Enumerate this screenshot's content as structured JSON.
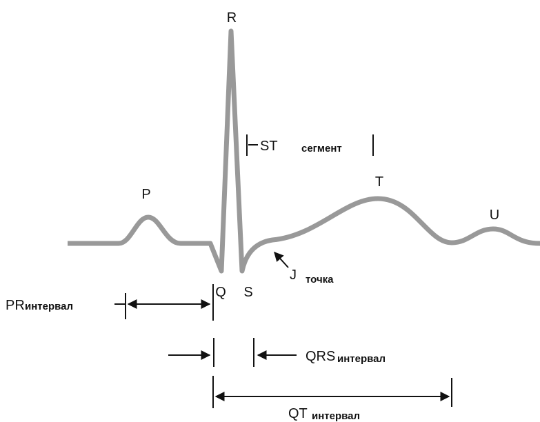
{
  "waves": {
    "P": "P",
    "Q": "Q",
    "R": "R",
    "S": "S",
    "T": "T",
    "U": "U"
  },
  "j_point": {
    "label": "J",
    "text": "точка"
  },
  "st_segment": {
    "name": "ST",
    "word": "сегмент"
  },
  "intervals": [
    {
      "name": "PR",
      "word": "интервал"
    },
    {
      "name": "QRS",
      "word": "интервал"
    },
    {
      "name": "QT",
      "word": "интервал"
    }
  ]
}
